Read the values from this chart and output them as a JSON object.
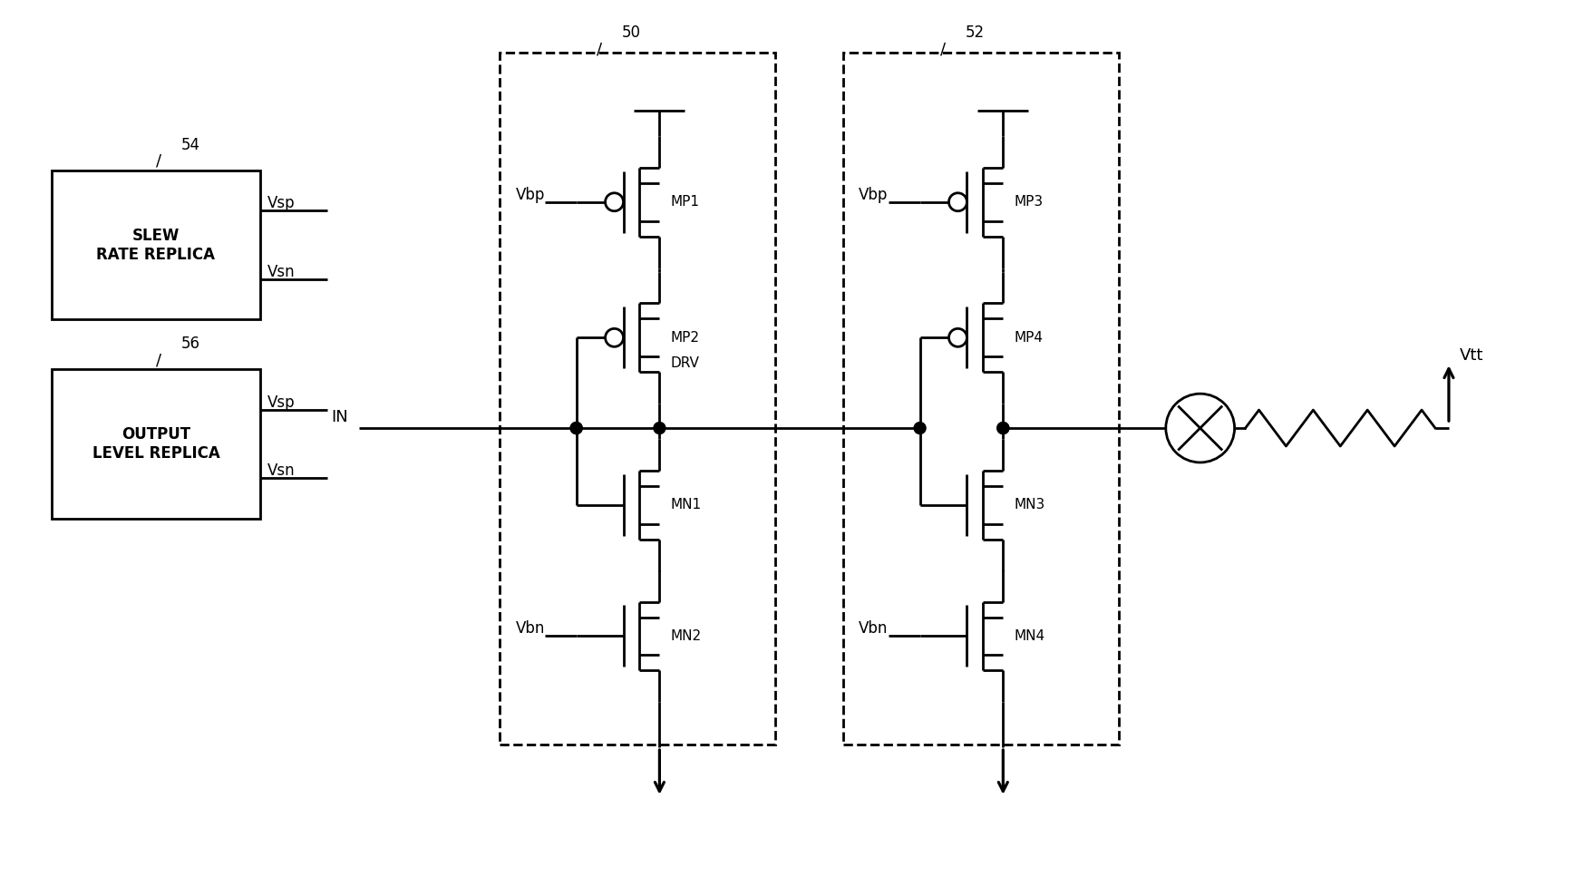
{
  "bg_color": "#ffffff",
  "line_color": "#000000",
  "lw": 2.0,
  "box1_label": "SLEW\nRATE REPLICA",
  "box1_ref": "54",
  "box2_label": "OUTPUT\nLEVEL REPLICA",
  "box2_ref": "56",
  "ref50": "50",
  "ref52": "52",
  "label_IN": "IN",
  "label_Vtt": "Vtt",
  "label_Vbp": "Vbp",
  "label_Vbn": "Vbn",
  "label_MP1": "MP1",
  "label_MP2": "MP2\nDRV",
  "label_MP3": "MP3",
  "label_MP4": "MP4",
  "label_MN1": "MN1",
  "label_MN2": "MN2",
  "label_MN3": "MN3",
  "label_MN4": "MN4",
  "label_Vsp": "Vsp",
  "label_Vsn": "Vsn"
}
